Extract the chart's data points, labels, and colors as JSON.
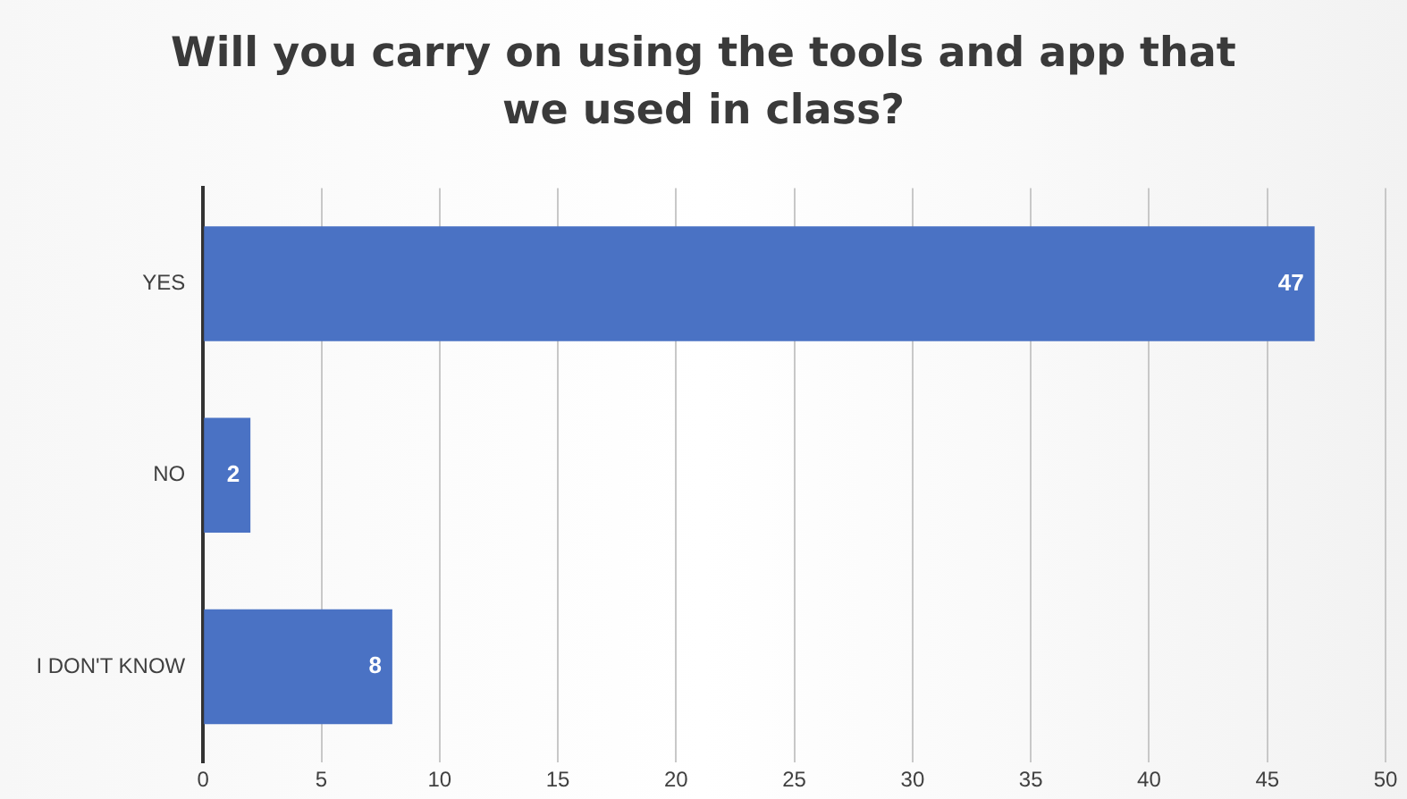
{
  "chart_data": {
    "type": "bar",
    "orientation": "horizontal",
    "title": "Will you carry on using the tools and app that we used in class?",
    "categories": [
      "YES",
      "NO",
      "I DON'T KNOW"
    ],
    "values": [
      47,
      2,
      8
    ],
    "color": "#4a72c4",
    "xlim": [
      0,
      50
    ],
    "xticks": [
      0,
      5,
      10,
      15,
      20,
      25,
      30,
      35,
      40,
      45,
      50
    ],
    "grid": "x",
    "data_labels": true
  }
}
